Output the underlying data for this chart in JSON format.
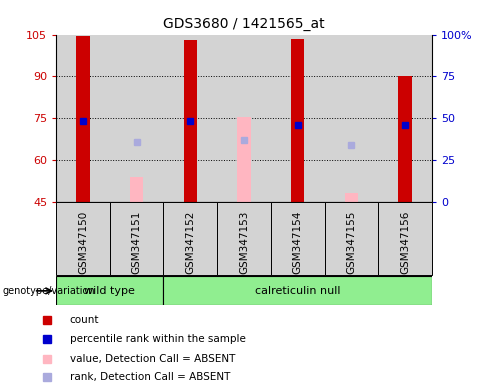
{
  "title": "GDS3680 / 1421565_at",
  "samples": [
    "GSM347150",
    "GSM347151",
    "GSM347152",
    "GSM347153",
    "GSM347154",
    "GSM347155",
    "GSM347156"
  ],
  "red_bars": {
    "GSM347150": 104.5,
    "GSM347152": 103.0,
    "GSM347154": 103.5,
    "GSM347156": 90.0
  },
  "pink_bars": {
    "GSM347151": 54.0,
    "GSM347153": 75.5,
    "GSM347155": 48.0
  },
  "blue_squares": {
    "GSM347150": 74.0,
    "GSM347152": 74.0,
    "GSM347154": 72.5,
    "GSM347156": 72.5
  },
  "light_blue_squares": {
    "GSM347151": 66.5,
    "GSM347153": 67.0,
    "GSM347155": 65.5
  },
  "ylim": [
    45,
    105
  ],
  "yticks_left": [
    45,
    60,
    75,
    90,
    105
  ],
  "right_ylim": [
    0,
    100
  ],
  "yticks_right": [
    0,
    25,
    50,
    75,
    100
  ],
  "red_color": "#CC0000",
  "pink_color": "#FFB6C1",
  "blue_color": "#0000CD",
  "light_blue_color": "#AAAADD",
  "bg_color": "#D3D3D3",
  "green_color": "#90EE90",
  "left_label_color": "#CC0000",
  "right_label_color": "#0000CD",
  "wild_type_samples": [
    0,
    1
  ],
  "calreticulin_samples": [
    2,
    3,
    4,
    5,
    6
  ],
  "legend_items": [
    {
      "label": "count",
      "color": "#CC0000"
    },
    {
      "label": "percentile rank within the sample",
      "color": "#0000CD"
    },
    {
      "label": "value, Detection Call = ABSENT",
      "color": "#FFB6C1"
    },
    {
      "label": "rank, Detection Call = ABSENT",
      "color": "#AAAADD"
    }
  ]
}
